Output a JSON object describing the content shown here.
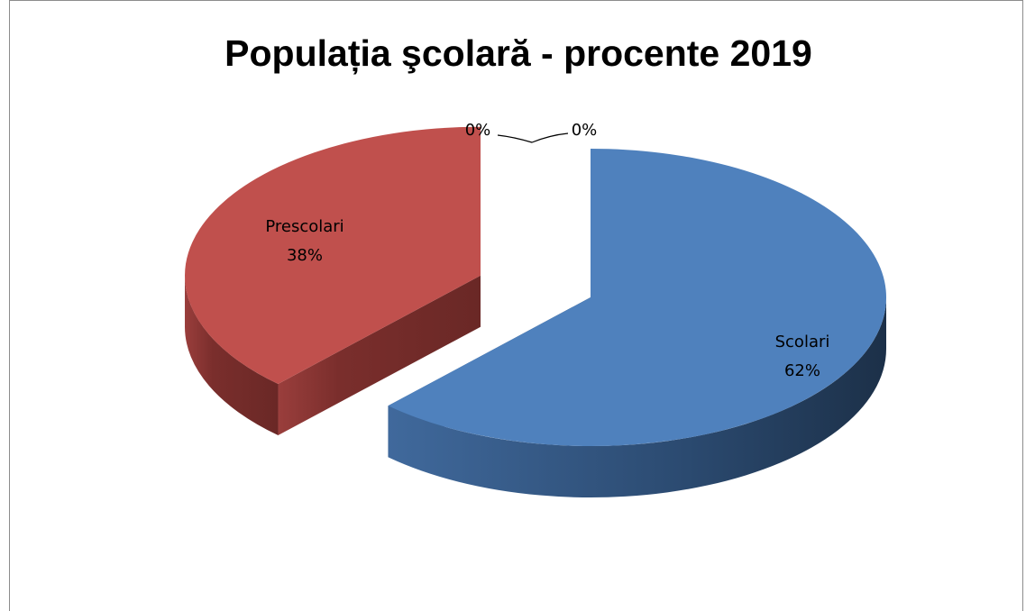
{
  "chart_data": {
    "type": "pie3d",
    "title": "Populația şcolară - procente 2019",
    "categories": [
      "Scolari",
      "Prescolari",
      null,
      null
    ],
    "values": [
      62,
      38,
      0,
      0
    ],
    "value_labels": [
      "62%",
      "38%",
      "0%",
      "0%"
    ],
    "colors": [
      "#4f81bd",
      "#c0504d",
      "#9bbb59",
      "#8064a2"
    ]
  }
}
